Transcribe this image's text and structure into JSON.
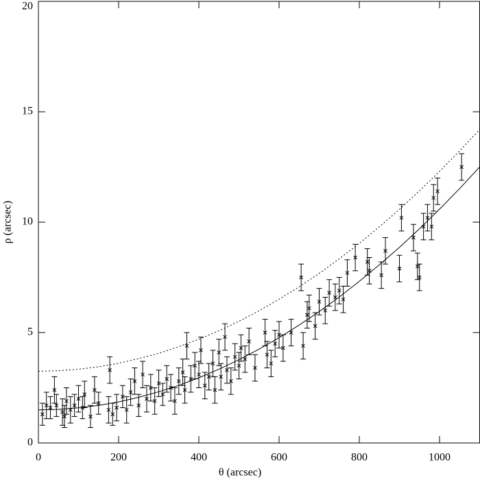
{
  "chart_data": {
    "type": "scatter",
    "xlabel": "θ (arcsec)",
    "ylabel": "ρ (arcsec)",
    "xlim": [
      0,
      1100
    ],
    "ylim": [
      0,
      20
    ],
    "xticks": [
      0,
      200,
      400,
      600,
      800,
      1000
    ],
    "yticks": [
      0,
      5,
      10,
      15,
      20
    ],
    "series": [
      {
        "type": "errorbar",
        "color": "#000000",
        "x": [
          10,
          20,
          30,
          40,
          45,
          60,
          65,
          70,
          80,
          90,
          100,
          110,
          115,
          130,
          140,
          150,
          175,
          178,
          185,
          195,
          210,
          220,
          230,
          240,
          250,
          260,
          270,
          280,
          290,
          300,
          310,
          320,
          330,
          340,
          350,
          360,
          365,
          370,
          380,
          390,
          400,
          405,
          415,
          425,
          435,
          440,
          450,
          455,
          465,
          470,
          480,
          490,
          500,
          505,
          515,
          525,
          540,
          565,
          570,
          580,
          590,
          600,
          610,
          630,
          655,
          660,
          670,
          675,
          690,
          700,
          715,
          725,
          740,
          750,
          760,
          770,
          790,
          820,
          825,
          855,
          865,
          900,
          905,
          935,
          945,
          950,
          960,
          970,
          980,
          985,
          995,
          1055
        ],
        "values": [
          1.3,
          1.7,
          1.6,
          2.4,
          1.7,
          1.4,
          1.2,
          1.9,
          1.5,
          1.7,
          2.0,
          1.6,
          2.2,
          1.2,
          2.4,
          1.8,
          1.5,
          3.3,
          1.3,
          1.6,
          2.1,
          1.5,
          2.3,
          2.8,
          1.7,
          3.1,
          2.0,
          2.5,
          1.9,
          2.7,
          2.2,
          2.9,
          2.5,
          1.9,
          2.8,
          3.2,
          2.4,
          4.4,
          2.9,
          3.5,
          3.1,
          4.2,
          2.6,
          3.0,
          3.6,
          2.4,
          4.1,
          3.0,
          4.8,
          3.3,
          2.8,
          3.9,
          3.5,
          4.3,
          3.8,
          4.6,
          3.4,
          5.0,
          4.0,
          3.6,
          4.5,
          4.9,
          4.3,
          5.0,
          7.5,
          4.4,
          5.8,
          6.1,
          5.3,
          6.4,
          6.0,
          6.8,
          6.6,
          6.9,
          6.5,
          7.7,
          8.4,
          8.2,
          7.8,
          7.6,
          8.7,
          7.9,
          10.2,
          9.3,
          8.0,
          7.5,
          9.8,
          10.2,
          9.8,
          11.1,
          11.4,
          12.5
        ],
        "errors": [
          0.5,
          0.6,
          0.5,
          0.6,
          0.5,
          0.6,
          0.5,
          0.6,
          0.6,
          0.5,
          0.6,
          0.5,
          0.6,
          0.5,
          0.6,
          0.5,
          0.6,
          0.6,
          0.5,
          0.6,
          0.5,
          0.6,
          0.6,
          0.6,
          0.5,
          0.6,
          0.6,
          0.6,
          0.6,
          0.6,
          0.5,
          0.6,
          0.6,
          0.6,
          0.6,
          0.6,
          0.6,
          0.6,
          0.6,
          0.6,
          0.6,
          0.6,
          0.6,
          0.6,
          0.6,
          0.6,
          0.6,
          0.6,
          0.6,
          0.6,
          0.6,
          0.6,
          0.6,
          0.6,
          0.6,
          0.6,
          0.6,
          0.6,
          0.6,
          0.6,
          0.6,
          0.6,
          0.6,
          0.6,
          0.6,
          0.6,
          0.6,
          0.6,
          0.6,
          0.6,
          0.6,
          0.6,
          0.6,
          0.6,
          0.6,
          0.6,
          0.6,
          0.6,
          0.6,
          0.6,
          0.6,
          0.6,
          0.6,
          0.6,
          0.6,
          0.6,
          0.6,
          0.6,
          0.6,
          0.6,
          0.6,
          0.6
        ]
      },
      {
        "type": "line",
        "color": "#000000",
        "dashed": false,
        "x": [
          0,
          50,
          100,
          150,
          200,
          250,
          300,
          350,
          400,
          450,
          500,
          550,
          600,
          650,
          700,
          750,
          800,
          850,
          900,
          950,
          1000,
          1050,
          1100
        ],
        "values": [
          1.5,
          1.52,
          1.59,
          1.7,
          1.86,
          2.07,
          2.32,
          2.61,
          2.95,
          3.34,
          3.77,
          4.25,
          4.77,
          5.34,
          5.95,
          6.61,
          7.32,
          8.07,
          8.86,
          9.7,
          10.59,
          11.52,
          12.5
        ]
      },
      {
        "type": "line",
        "color": "#000000",
        "dashed": true,
        "x": [
          0,
          50,
          100,
          150,
          200,
          250,
          300,
          350,
          400,
          450,
          500,
          550,
          600,
          650,
          700,
          750,
          800,
          850,
          900,
          950,
          1000,
          1050,
          1100
        ],
        "values": [
          3.25,
          3.27,
          3.34,
          3.45,
          3.61,
          3.82,
          4.06,
          4.36,
          4.7,
          5.08,
          5.51,
          5.99,
          6.51,
          7.07,
          7.68,
          8.34,
          9.04,
          9.79,
          10.58,
          11.42,
          12.3,
          13.23,
          14.2
        ]
      }
    ]
  }
}
